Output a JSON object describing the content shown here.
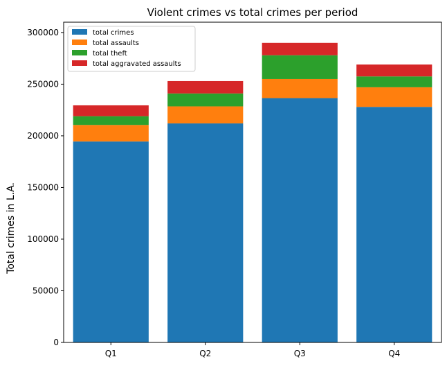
{
  "chart_data": {
    "type": "bar",
    "stacked": true,
    "title": "Violent crimes vs total crimes per period",
    "xlabel": "",
    "ylabel": "Total crimes in L.A.",
    "categories": [
      "Q1",
      "Q2",
      "Q3",
      "Q4"
    ],
    "ylim": [
      0,
      310000
    ],
    "yticks": [
      0,
      50000,
      100000,
      150000,
      200000,
      250000,
      300000
    ],
    "ytick_labels": [
      "0",
      "50000",
      "100000",
      "150000",
      "200000",
      "250000",
      "300000"
    ],
    "grid": false,
    "legend_position": "top-left",
    "series": [
      {
        "name": "total crimes",
        "color": "#1f77b4",
        "values": [
          194500,
          212000,
          236500,
          228000
        ]
      },
      {
        "name": "total assaults",
        "color": "#ff7f0e",
        "values": [
          16000,
          16500,
          18500,
          19000
        ]
      },
      {
        "name": "total theft",
        "color": "#2ca02c",
        "values": [
          8500,
          12500,
          23000,
          10500
        ]
      },
      {
        "name": "total aggravated assaults",
        "color": "#d62728",
        "values": [
          10500,
          12000,
          12000,
          11500
        ]
      }
    ]
  }
}
